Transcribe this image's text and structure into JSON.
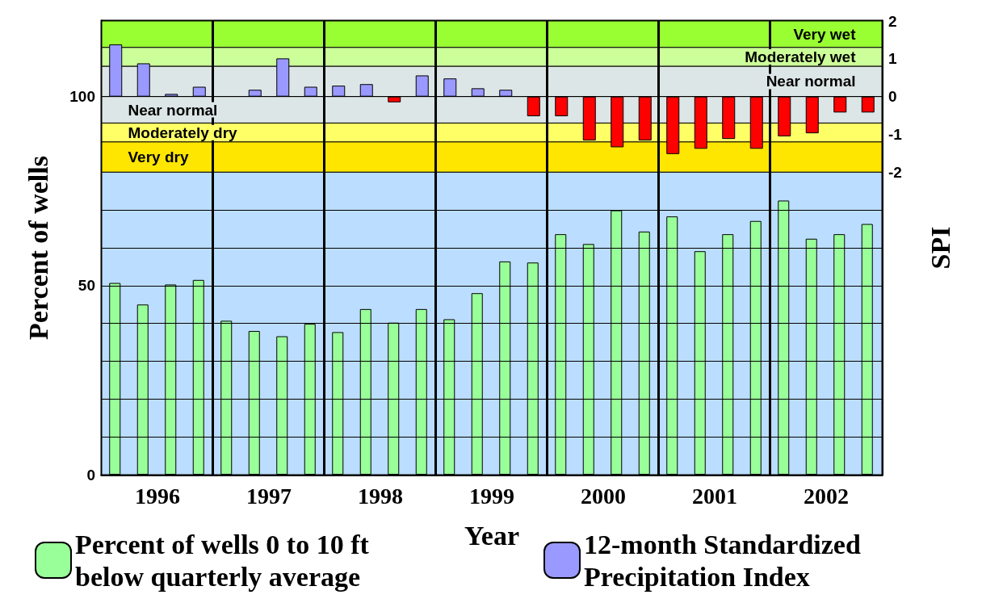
{
  "chart_data": {
    "type": "bar",
    "xlabel": "Year",
    "ylabel": "Percent of wells",
    "y2label": "SPI",
    "x": [
      1996.125,
      1996.375,
      1996.625,
      1996.875,
      1997.125,
      1997.375,
      1997.625,
      1997.875,
      1998.125,
      1998.375,
      1998.625,
      1998.875,
      1999.125,
      1999.375,
      1999.625,
      1999.875,
      2000.125,
      2000.375,
      2000.625,
      2000.875,
      2001.125,
      2001.375,
      2001.625,
      2001.875,
      2002.125,
      2002.375,
      2002.625,
      2002.875
    ],
    "xlim": [
      1996,
      2003
    ],
    "xticks": [
      {
        "value": 1996.5,
        "label": "1996"
      },
      {
        "value": 1997.5,
        "label": "1997"
      },
      {
        "value": 1998.5,
        "label": "1998"
      },
      {
        "value": 1999.5,
        "label": "1999"
      },
      {
        "value": 2000.5,
        "label": "2000"
      },
      {
        "value": 2001.5,
        "label": "2001"
      },
      {
        "value": 2002.5,
        "label": "2002"
      }
    ],
    "ylim": [
      0,
      120
    ],
    "yticks": [
      0,
      {
        "value": 10,
        "label": null
      },
      {
        "value": 20,
        "label": null
      },
      {
        "value": 30,
        "label": null
      },
      {
        "value": 40,
        "label": null
      },
      50,
      {
        "value": 60,
        "label": null
      },
      {
        "value": 70,
        "label": null
      },
      100
    ],
    "y2lim": [
      -10,
      2
    ],
    "y2ticks": [
      -2,
      -1,
      0,
      1,
      2
    ],
    "series": [
      {
        "name": "Percent of wells 0 to 10 ft below quarterly average",
        "color": "#99ff99",
        "values": [
          50.7,
          45.0,
          50.3,
          51.5,
          40.7,
          38.0,
          36.6,
          39.9,
          37.7,
          43.8,
          40.2,
          43.8,
          41.1,
          48.0,
          56.4,
          56.1,
          63.6,
          61.0,
          69.9,
          64.3,
          68.3,
          59.1,
          63.6,
          67.1,
          72.5,
          62.4,
          63.6,
          66.3
        ]
      },
      {
        "name": "12-month Standardized Precipitation Index",
        "axis": "y2",
        "colors": [
          "#9999ff",
          "#9999ff",
          "#9999ff",
          "#9999ff",
          "#9999ff",
          "#9999ff",
          "#9999ff",
          "#9999ff",
          "#9999ff",
          "#9999ff",
          "#ff0000",
          "#9999ff",
          "#9999ff",
          "#9999ff",
          "#9999ff",
          "#ff0000",
          "#ff0000",
          "#ff0000",
          "#ff0000",
          "#ff0000",
          "#ff0000",
          "#ff0000",
          "#ff0000",
          "#ff0000",
          "#ff0000",
          "#ff0000",
          "#ff0000",
          "#ff0000"
        ],
        "values": [
          1.38,
          0.88,
          0.07,
          0.26,
          null,
          0.18,
          1.01,
          0.26,
          0.29,
          0.33,
          -0.15,
          0.56,
          0.48,
          0.22,
          0.18,
          -0.52,
          -0.52,
          -1.16,
          -1.34,
          -1.16,
          -1.52,
          -1.38,
          -1.12,
          -1.38,
          -1.05,
          -0.97,
          -0.42,
          -0.42
        ]
      }
    ],
    "bands": [
      {
        "axis": "y2",
        "from": 1.3,
        "to": 2,
        "label": "Very wet",
        "color": "#99ff33"
      },
      {
        "axis": "y2",
        "from": 0.8,
        "to": 1.3,
        "label": "Moderately wet",
        "color": "#ccff99"
      },
      {
        "axis": "y2",
        "from": 0,
        "to": 0.8,
        "label": "Near normal",
        "color": "#dde6e6"
      },
      {
        "axis": "y2",
        "from": -0.7,
        "to": 0,
        "label": "Near normal",
        "color": "#dde6e6"
      },
      {
        "axis": "y2",
        "from": -1.2,
        "to": -0.7,
        "label": "Moderately dry",
        "color": "#ffff66"
      },
      {
        "axis": "y2",
        "from": -2,
        "to": -1.2,
        "label": "Very dry",
        "color": "#ffe600"
      },
      {
        "axis": "y2",
        "from": -10,
        "to": -2,
        "color": "#bbddff"
      }
    ],
    "ref_lines": [
      {
        "axis": "x",
        "value": 1997,
        "color": "#000000"
      },
      {
        "axis": "x",
        "value": 1998,
        "color": "#000000"
      },
      {
        "axis": "x",
        "value": 1999,
        "color": "#000000"
      },
      {
        "axis": "x",
        "value": 2000,
        "color": "#000000"
      },
      {
        "axis": "x",
        "value": 2001,
        "color": "#000000"
      },
      {
        "axis": "x",
        "value": 2002,
        "color": "#000000"
      }
    ],
    "grid": "y",
    "legend": "bottom"
  }
}
